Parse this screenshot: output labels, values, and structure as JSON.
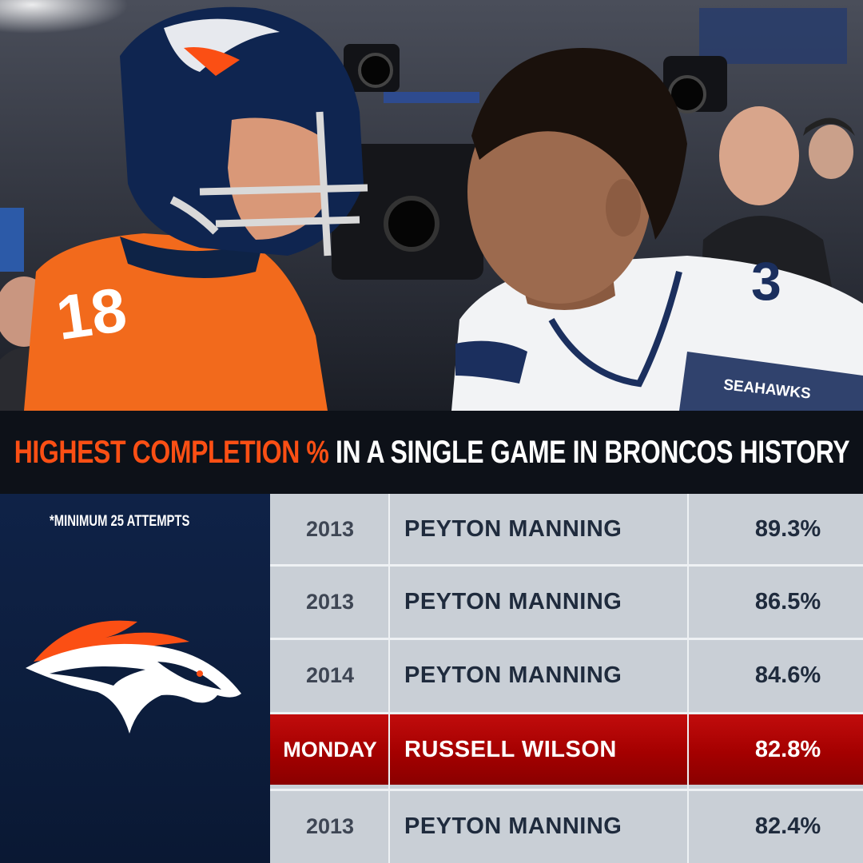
{
  "title": {
    "highlight": "HIGHEST COMPLETION %",
    "rest": "IN A SINGLE GAME IN BRONCOS HISTORY"
  },
  "footnote": "*MINIMUM 25 ATTEMPTS",
  "photo": {
    "left_jersey_number": "18",
    "right_jersey_number": "3",
    "right_jersey_wordmark": "SEAHAWKS"
  },
  "rows": [
    {
      "year": "2013",
      "player": "PEYTON MANNING",
      "pct": "89.3%"
    },
    {
      "year": "2013",
      "player": "PEYTON MANNING",
      "pct": "86.5%"
    },
    {
      "year": "2014",
      "player": "PEYTON MANNING",
      "pct": "84.6%"
    },
    {
      "year": "MONDAY",
      "player": "RUSSELL WILSON",
      "pct": "82.8%"
    },
    {
      "year": "2013",
      "player": "PEYTON MANNING",
      "pct": "82.4%"
    }
  ],
  "colors": {
    "broncos_orange": "#fb4f14",
    "broncos_navy": "#0c1d3c",
    "highlight_red": "#a40000",
    "table_bg": "#c9cfd6"
  }
}
